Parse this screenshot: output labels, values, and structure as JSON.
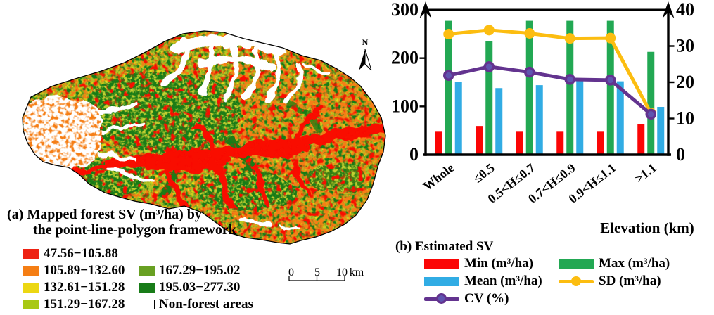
{
  "panel_a": {
    "title_line1": "(a) Mapped forest SV (m³/ha) by",
    "title_line2": "the point-line-polygon framework",
    "legend": [
      {
        "label": "47.56−105.88",
        "color": "#ee2213"
      },
      {
        "label": "105.89−132.60",
        "color": "#f57e14"
      },
      {
        "label": "132.61−151.28",
        "color": "#ecd713"
      },
      {
        "label": "151.29−167.28",
        "color": "#a8c814"
      },
      {
        "label": "167.29−195.02",
        "color": "#68a022"
      },
      {
        "label": "195.03−277.30",
        "color": "#187c18"
      },
      {
        "label": "Non-forest areas",
        "color": "#ffffff"
      }
    ],
    "north_label": "N",
    "scale_bar": {
      "tick_labels": [
        "0",
        "5",
        "10"
      ],
      "unit": "km"
    }
  },
  "panel_b": {
    "caption": "(b) Estimated SV",
    "xlabel": "Elevation (km)"
  },
  "chart_data": {
    "type": "bar+line",
    "categories": [
      "Whole",
      "≤0.5",
      "0.5<H≤0.7",
      "0.7<H≤0.9",
      "0.9<H≤1.1",
      ">1.1"
    ],
    "xlabel": "Elevation (km)",
    "left_axis": {
      "range": [
        0,
        300
      ],
      "ticks": [
        0,
        100,
        200,
        300
      ],
      "applies_to": "bars: SV (m³/ha)"
    },
    "right_axis": {
      "range": [
        0,
        40
      ],
      "ticks": [
        0,
        10,
        20,
        30,
        40
      ],
      "applies_to": "lines: SD, CV"
    },
    "grid": false,
    "legend_position": "below",
    "series": [
      {
        "name": "Min (m³/ha)",
        "type": "bar",
        "axis": "left",
        "color": "#fb0505",
        "values": [
          47.6,
          59.5,
          47.6,
          47.6,
          47.6,
          64
        ]
      },
      {
        "name": "Max (m³/ha)",
        "type": "bar",
        "axis": "left",
        "color": "#22a853",
        "values": [
          277.3,
          235,
          277.3,
          277.3,
          277.3,
          213
        ]
      },
      {
        "name": "Mean (m³/ha)",
        "type": "bar",
        "axis": "left",
        "color": "#31ace4",
        "values": [
          150,
          138,
          144,
          153,
          152,
          99
        ]
      },
      {
        "name": "SD (m³/ha)",
        "type": "line",
        "axis": "right",
        "color": "#fcbd10",
        "values": [
          33.3,
          34.4,
          33.5,
          32.1,
          32.2,
          11.5
        ]
      },
      {
        "name": "CV (%)",
        "type": "line",
        "axis": "right",
        "color": "#63338f",
        "marker_fill": "#5f55b0",
        "values": [
          21.9,
          24.3,
          22.8,
          20.8,
          20.6,
          11.2
        ]
      }
    ]
  }
}
